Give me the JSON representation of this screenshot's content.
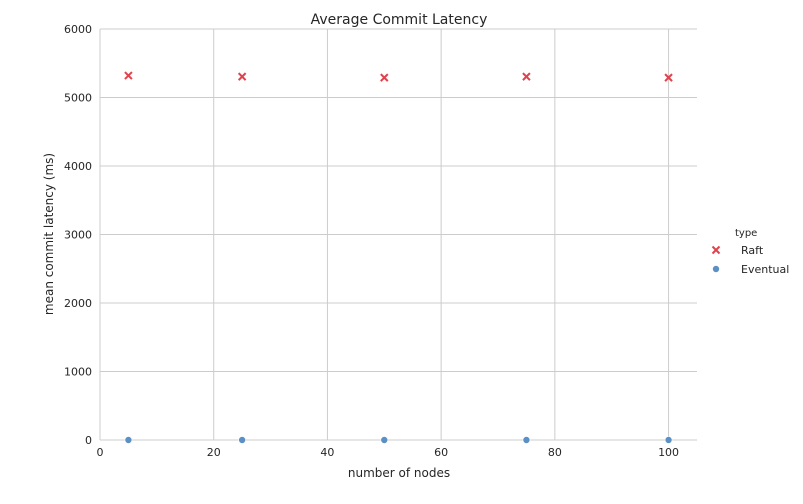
{
  "chart_data": {
    "type": "scatter",
    "title": "Average Commit Latency",
    "xlabel": "number of nodes",
    "ylabel": "mean commit latency (ms)",
    "xlim": [
      0,
      105
    ],
    "ylim": [
      0,
      6000
    ],
    "x_ticks": [
      0,
      20,
      40,
      60,
      80,
      100
    ],
    "y_ticks": [
      0,
      1000,
      2000,
      3000,
      4000,
      5000,
      6000
    ],
    "grid": true,
    "legend_title": "type",
    "legend_position": "right",
    "series": [
      {
        "name": "Raft",
        "marker": "x",
        "color": "#e0434d",
        "x": [
          5,
          25,
          50,
          75,
          100
        ],
        "y": [
          5320,
          5305,
          5290,
          5305,
          5290
        ]
      },
      {
        "name": "Eventual",
        "marker": "o",
        "color": "#5b90c5",
        "x": [
          5,
          25,
          50,
          75,
          100
        ],
        "y": [
          0,
          0,
          0,
          0,
          0
        ]
      }
    ]
  }
}
